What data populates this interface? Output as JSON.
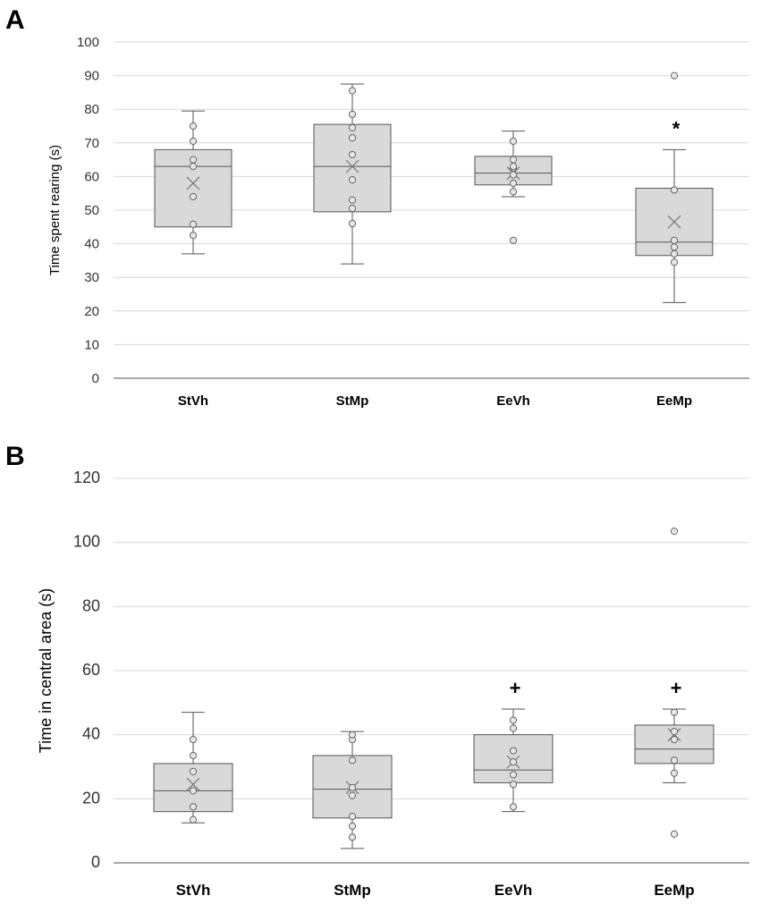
{
  "chart_data": [
    {
      "panel_label": "A",
      "type": "box",
      "ylabel": "Time spent rearing (s)",
      "xlabel": "",
      "ylim": [
        0,
        100
      ],
      "yticks": [
        0,
        10,
        20,
        30,
        40,
        50,
        60,
        70,
        80,
        90,
        100
      ],
      "grid": true,
      "categories": [
        "StVh",
        "StMp",
        "EeVh",
        "EeMp"
      ],
      "boxes": [
        {
          "category": "StVh",
          "whisker_low": 37,
          "q1": 45,
          "median": 63,
          "q3": 68,
          "whisker_high": 79.5,
          "mean": 58,
          "points": [
            42.5,
            45.8,
            54,
            63,
            65,
            70.5,
            75
          ],
          "annotation": ""
        },
        {
          "category": "StMp",
          "whisker_low": 34,
          "q1": 49.5,
          "median": 63,
          "q3": 75.5,
          "whisker_high": 87.5,
          "mean": 63,
          "points": [
            46,
            50.5,
            53,
            59,
            66.5,
            71.5,
            74.5,
            78.5,
            85.5
          ],
          "annotation": ""
        },
        {
          "category": "EeVh",
          "whisker_low": 54,
          "q1": 57.5,
          "median": 61,
          "q3": 66,
          "whisker_high": 73.5,
          "mean": 61,
          "points": [
            41,
            55.5,
            58,
            60.5,
            62.5,
            63,
            65,
            70.5
          ],
          "annotation": ""
        },
        {
          "category": "EeMp",
          "whisker_low": 22.5,
          "q1": 36.5,
          "median": 40.5,
          "q3": 56.5,
          "whisker_high": 68,
          "mean": 46.5,
          "points": [
            34.5,
            37,
            39,
            41,
            56,
            90
          ],
          "annotation": "*"
        }
      ]
    },
    {
      "panel_label": "B",
      "type": "box",
      "ylabel": "Time in central area (s)",
      "xlabel": "",
      "ylim": [
        0,
        120
      ],
      "yticks": [
        0,
        20,
        40,
        60,
        80,
        100,
        120
      ],
      "grid": true,
      "categories": [
        "StVh",
        "StMp",
        "EeVh",
        "EeMp"
      ],
      "boxes": [
        {
          "category": "StVh",
          "whisker_low": 12.5,
          "q1": 16,
          "median": 22.5,
          "q3": 31,
          "whisker_high": 47,
          "mean": 24.5,
          "points": [
            13.5,
            17.5,
            22.5,
            28.5,
            33.5,
            38.5
          ],
          "annotation": ""
        },
        {
          "category": "StMp",
          "whisker_low": 4.5,
          "q1": 14,
          "median": 23,
          "q3": 33.5,
          "whisker_high": 41,
          "mean": 23.5,
          "points": [
            8,
            11.5,
            14.5,
            21,
            23.5,
            32,
            38.5,
            40
          ],
          "annotation": ""
        },
        {
          "category": "EeVh",
          "whisker_low": 16,
          "q1": 25,
          "median": 29,
          "q3": 40,
          "whisker_high": 48,
          "mean": 31.5,
          "points": [
            17.5,
            24.5,
            27.5,
            31.5,
            35,
            42,
            44.5
          ],
          "annotation": "+"
        },
        {
          "category": "EeMp",
          "whisker_low": 25,
          "q1": 31,
          "median": 35.5,
          "q3": 43,
          "whisker_high": 48,
          "mean": 40,
          "points": [
            9,
            28,
            32,
            38.5,
            41,
            47,
            103.5
          ],
          "annotation": "+"
        }
      ]
    }
  ]
}
